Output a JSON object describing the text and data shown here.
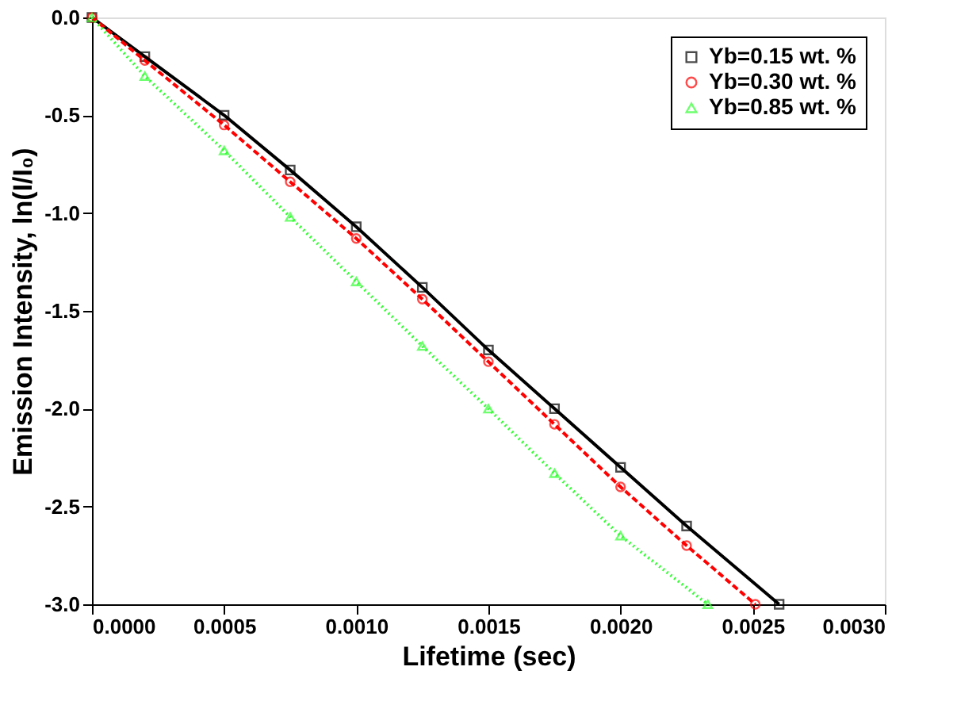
{
  "chart_data": {
    "type": "line",
    "xlabel": "Lifetime (sec)",
    "ylabel": "Emission Intensity, ln(I/I₀)",
    "series": [
      {
        "name": "Yb=0.15 wt. %",
        "color": "#000000",
        "marker": "square",
        "line_style": "solid",
        "x": [
          0,
          0.0002,
          0.0005,
          0.00075,
          0.001,
          0.00125,
          0.0015,
          0.00175,
          0.002,
          0.00225,
          0.0026
        ],
        "values": [
          0,
          -0.2,
          -0.5,
          -0.78,
          -1.07,
          -1.38,
          -1.7,
          -2.0,
          -2.3,
          -2.6,
          -3.0
        ]
      },
      {
        "name": "Yb=0.30 wt. %",
        "color": "#ff0000",
        "marker": "circle",
        "line_style": "dashed",
        "x": [
          0,
          0.0002,
          0.0005,
          0.00075,
          0.001,
          0.00125,
          0.0015,
          0.00175,
          0.002,
          0.00225,
          0.00251
        ],
        "values": [
          0,
          -0.22,
          -0.55,
          -0.84,
          -1.13,
          -1.44,
          -1.76,
          -2.08,
          -2.4,
          -2.7,
          -3.0
        ]
      },
      {
        "name": "Yb=0.85 wt. %",
        "color": "#33ff33",
        "marker": "triangle",
        "line_style": "dotted",
        "x": [
          0,
          0.0002,
          0.0005,
          0.00075,
          0.001,
          0.00125,
          0.0015,
          0.00175,
          0.002,
          0.00233
        ],
        "values": [
          0,
          -0.3,
          -0.68,
          -1.02,
          -1.35,
          -1.68,
          -2.0,
          -2.33,
          -2.65,
          -3.0
        ]
      }
    ],
    "xlim": [
      0,
      0.003
    ],
    "xticks": [
      {
        "value": 0,
        "label": "0.0000"
      },
      {
        "value": 0.0005,
        "label": "0.0005"
      },
      {
        "value": 0.001,
        "label": "0.0010"
      },
      {
        "value": 0.0015,
        "label": "0.0015"
      },
      {
        "value": 0.002,
        "label": "0.0020"
      },
      {
        "value": 0.0025,
        "label": "0.0025"
      },
      {
        "value": 0.003,
        "label": "0.0030"
      }
    ],
    "ylim": [
      -3,
      0
    ],
    "yticks": [
      {
        "value": -3,
        "label": "-3.0"
      },
      {
        "value": -2.5,
        "label": "-2.5"
      },
      {
        "value": -2,
        "label": "-2.0"
      },
      {
        "value": -1.5,
        "label": "-1.5"
      },
      {
        "value": -1,
        "label": "-1.0"
      },
      {
        "value": -0.5,
        "label": "-0.5"
      },
      {
        "value": 0,
        "label": "0.0"
      }
    ],
    "grid": false,
    "legend": "top right"
  }
}
